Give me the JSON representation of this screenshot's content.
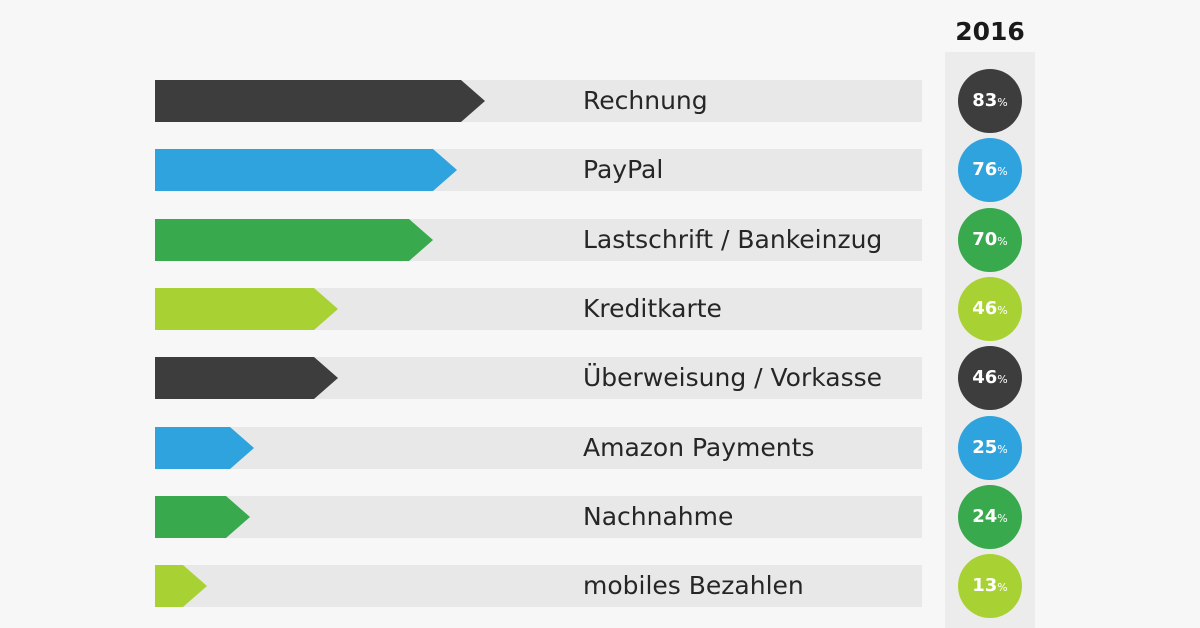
{
  "chart_data": {
    "type": "bar",
    "orientation": "horizontal",
    "column_header": "2016",
    "unit": "%",
    "xlim": [
      0,
      100
    ],
    "grid": false,
    "categories": [
      "Rechnung",
      "PayPal",
      "Lastschrift / Bankeinzug",
      "Kreditkarte",
      "Überweisung / Vorkasse",
      "Amazon Payments",
      "Nachnahme",
      "mobiles Bezahlen"
    ],
    "values": [
      83,
      76,
      70,
      46,
      46,
      25,
      24,
      13
    ],
    "value_labels": [
      "83",
      "76",
      "70",
      "46",
      "46",
      "25",
      "24",
      "13"
    ],
    "colors": [
      "#3d3d3d",
      "#2ea3dd",
      "#38a94c",
      "#a8d233",
      "#3d3d3d",
      "#2ea3dd",
      "#38a94c",
      "#a8d233"
    ]
  }
}
